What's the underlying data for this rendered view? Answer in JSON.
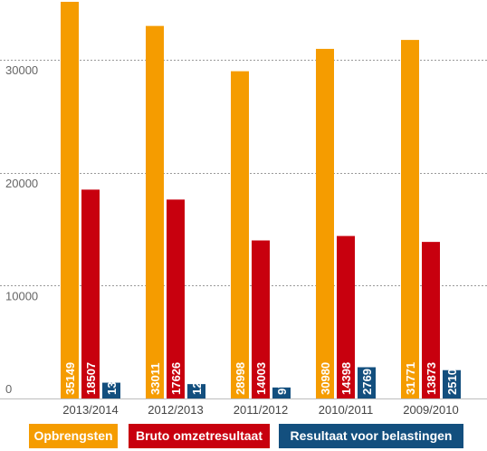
{
  "chart_data": {
    "type": "bar",
    "title": "",
    "xlabel": "",
    "ylabel": "",
    "categories": [
      "2013/2014",
      "2012/2013",
      "2011/2012",
      "2010/2011",
      "2009/2010"
    ],
    "series": [
      {
        "name": "Opbrengsten",
        "color": "#f59c00",
        "values": [
          35149,
          33011,
          28998,
          30980,
          31771
        ]
      },
      {
        "name": "Bruto omzetresultaat",
        "color": "#c8000e",
        "values": [
          18507,
          17626,
          14003,
          14398,
          13873
        ]
      },
      {
        "name": "Resultaat voor belastingen",
        "color": "#134f7e",
        "values": [
          1399,
          1274,
          974,
          2769,
          2510
        ]
      }
    ],
    "yticks": [
      0,
      10000,
      20000,
      30000
    ],
    "ytick_labels": [
      "0",
      "10000",
      "20000",
      "30000"
    ],
    "ylim": [
      0,
      35149
    ],
    "grid": true,
    "legend_position": "bottom",
    "value_labels": true
  }
}
